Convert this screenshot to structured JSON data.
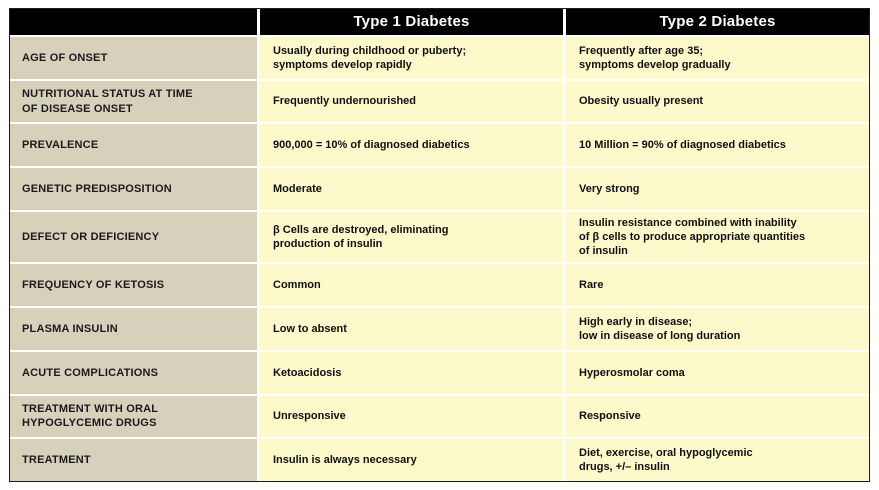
{
  "colors": {
    "header_bg": "#000000",
    "header_text": "#ffffff",
    "label_column_bg": "#d7d1bc",
    "value_column_bg": "#fcf9cb",
    "gap_and_page_bg": "#ffffff",
    "border": "#1c1c1c",
    "body_text": "#101010"
  },
  "chart_data": {
    "type": "table",
    "title": "",
    "columns": [
      "",
      "Type 1 Diabetes",
      "Type 2 Diabetes"
    ],
    "rows": [
      {
        "label": "AGE OF ONSET",
        "type1": "Usually during childhood or puberty;\nsymptoms develop rapidly",
        "type2": "Frequently after age 35;\nsymptoms develop gradually"
      },
      {
        "label": "NUTRITIONAL STATUS AT TIME\nOF DISEASE ONSET",
        "type1": "Frequently undernourished",
        "type2": "Obesity usually present"
      },
      {
        "label": "PREVALENCE",
        "type1": "900,000 = 10% of diagnosed diabetics",
        "type2": "10 Million = 90% of diagnosed diabetics"
      },
      {
        "label": "GENETIC PREDISPOSITION",
        "type1": "Moderate",
        "type2": "Very strong"
      },
      {
        "label": "DEFECT OR DEFICIENCY",
        "type1": "β Cells are destroyed, eliminating\nproduction of insulin",
        "type2": "Insulin resistance combined with inability\nof β cells to produce appropriate quantities\nof insulin"
      },
      {
        "label": "FREQUENCY OF KETOSIS",
        "type1": "Common",
        "type2": "Rare"
      },
      {
        "label": "PLASMA INSULIN",
        "type1": "Low to absent",
        "type2": "High early in disease;\nlow in disease of long duration"
      },
      {
        "label": "ACUTE COMPLICATIONS",
        "type1": "Ketoacidosis",
        "type2": "Hyperosmolar coma"
      },
      {
        "label": "TREATMENT  WITH ORAL\nHYPOGLYCEMIC DRUGS",
        "type1": "Unresponsive",
        "type2": "Responsive"
      },
      {
        "label": "TREATMENT",
        "type1": "Insulin is always necessary",
        "type2": "Diet, exercise, oral hypoglycemic\ndrugs,  +/– insulin"
      }
    ]
  }
}
